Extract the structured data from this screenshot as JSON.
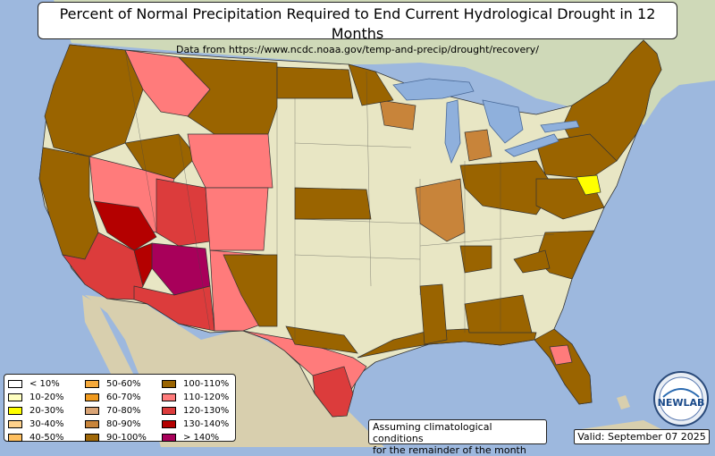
{
  "title": "Percent of Normal Precipitation Required to End Current Hydrological Drought in 12 Months",
  "subtitle": "Data from https://www.ncdc.noaa.gov/temp-and-precip/drought/recovery/",
  "note_line1": "Assuming climatological conditions",
  "note_line2": "for the remainder of the month",
  "valid": "Valid: September 07 2025",
  "logo_text": "NEWLAB",
  "legend": [
    {
      "label": "< 10%",
      "color": "#ffffff"
    },
    {
      "label": "10-20%",
      "color": "#ffffc0"
    },
    {
      "label": "20-30%",
      "color": "#ffff00"
    },
    {
      "label": "30-40%",
      "color": "#ffd28c"
    },
    {
      "label": "40-50%",
      "color": "#ffc060"
    },
    {
      "label": "50-60%",
      "color": "#f5a93a"
    },
    {
      "label": "60-70%",
      "color": "#f09a1e"
    },
    {
      "label": "70-80%",
      "color": "#d9a476"
    },
    {
      "label": "80-90%",
      "color": "#c8843a"
    },
    {
      "label": "90-100%",
      "color": "#a06808"
    },
    {
      "label": "100-110%",
      "color": "#9a6400"
    },
    {
      "label": "110-120%",
      "color": "#ff7b7b"
    },
    {
      "label": "120-130%",
      "color": "#dc3c3c"
    },
    {
      "label": "130-140%",
      "color": "#b40000"
    },
    {
      "label": "> 140%",
      "color": "#a8005a"
    }
  ],
  "colors": {
    "ocean": "#9db8de",
    "land": "#e8e6c4",
    "mexico": "#d8cfae",
    "canada": "#cfd9b8",
    "lakes": "#8fb0dc"
  }
}
